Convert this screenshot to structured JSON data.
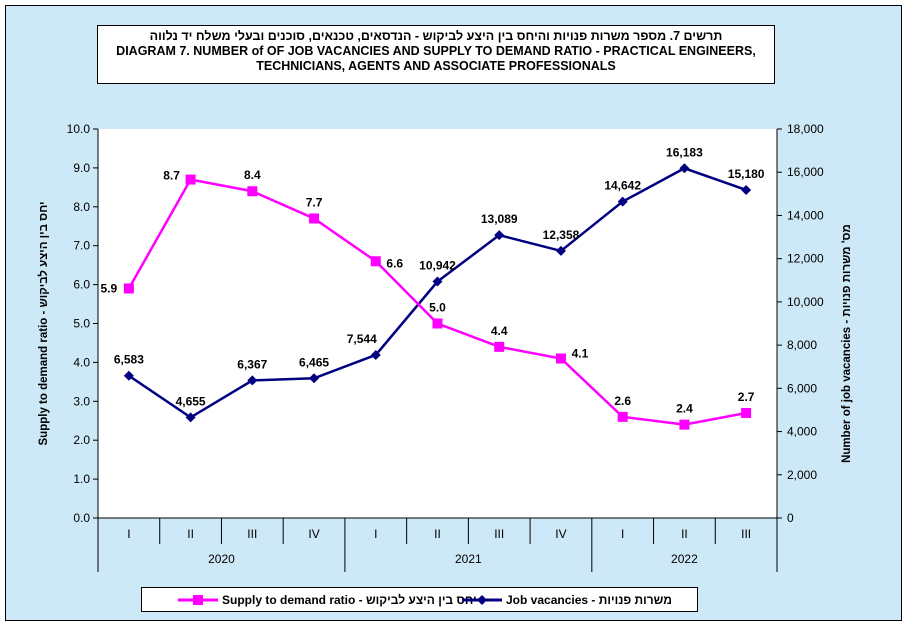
{
  "chart_data": {
    "type": "line",
    "title_he": "תרשים 7. מספר משרות פנויות והיחס בין היצע לביקוש - הנדסאים, טכנאים, סוכנים ובעלי משלח יד נלווה",
    "title_en_line1": "DIAGRAM 7. NUMBER of OF JOB VACANCIES AND SUPPLY TO DEMAND RATIO - PRACTICAL ENGINEERS,",
    "title_en_line2": "TECHNICIANS, AGENTS AND ASSOCIATE PROFESSIONALS",
    "ylabel_left": "Supply to demand ratio - יחס בין היצע לביקוש",
    "ylabel_right": "Number of job vacancies - מס' משרות פנויות",
    "categories": [
      "I",
      "II",
      "III",
      "IV",
      "I",
      "II",
      "III",
      "IV",
      "I",
      "II",
      "III"
    ],
    "years": [
      {
        "label": "2020",
        "span": 4
      },
      {
        "label": "2021",
        "span": 4
      },
      {
        "label": "2022",
        "span": 3
      }
    ],
    "y_left": {
      "min": 0,
      "max": 10,
      "ticks": [
        "0.0",
        "1.0",
        "2.0",
        "3.0",
        "4.0",
        "5.0",
        "6.0",
        "7.0",
        "8.0",
        "9.0",
        "10.0"
      ]
    },
    "y_right": {
      "min": 0,
      "max": 18000,
      "ticks": [
        "0",
        "2,000",
        "4,000",
        "6,000",
        "8,000",
        "10,000",
        "12,000",
        "14,000",
        "16,000",
        "18,000"
      ]
    },
    "series": [
      {
        "name": "Supply to demand ratio - יחס בין היצע לביקוש",
        "axis": "left",
        "color": "#ff00ff",
        "marker": "square",
        "values": [
          5.9,
          8.7,
          8.4,
          7.7,
          6.6,
          5.0,
          4.4,
          4.1,
          2.6,
          2.4,
          2.7
        ],
        "labels": [
          "5.9",
          "8.7",
          "8.4",
          "7.7",
          "6.6",
          "5.0",
          "4.4",
          "4.1",
          "2.6",
          "2.4",
          "2.7"
        ]
      },
      {
        "name": "Job vacancies - משרות פנויות",
        "axis": "right",
        "color": "#000080",
        "marker": "diamond",
        "values": [
          6583,
          4655,
          6367,
          6465,
          7544,
          10942,
          13089,
          12358,
          14642,
          16183,
          15180
        ],
        "labels": [
          "6,583",
          "4,655",
          "6,367",
          "6,465",
          "7,544",
          "10,942",
          "13,089",
          "12,358",
          "14,642",
          "16,183",
          "15,180"
        ]
      }
    ],
    "legend": {
      "ratio_label": "Supply to demand ratio - יחס בין היצע לביקוש",
      "vacancies_label": "Job vacancies - משרות פנויות"
    }
  }
}
